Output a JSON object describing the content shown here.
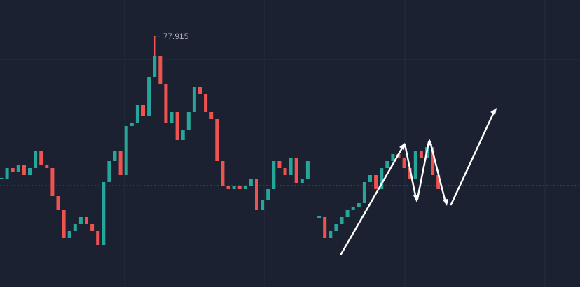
{
  "chart_data": {
    "type": "candlestick",
    "ylim": [
      70.755,
      78.955
    ],
    "close": [
      73.855,
      74.155,
      74.055,
      74.255,
      73.955,
      74.155,
      74.655,
      74.255,
      74.155,
      73.355,
      72.955,
      72.155,
      72.355,
      72.555,
      72.755,
      72.555,
      72.355,
      71.955,
      73.755,
      74.355,
      74.655,
      73.955,
      75.355,
      75.455,
      75.955,
      75.655,
      76.755,
      77.355,
      76.555,
      75.455,
      75.755,
      74.955,
      75.255,
      75.755,
      76.455,
      76.255,
      75.755,
      75.555,
      74.355,
      73.655,
      73.555,
      73.655,
      73.555,
      73.655,
      73.855,
      72.955,
      73.255,
      73.555,
      74.355,
      74.155,
      73.955,
      74.455,
      73.715,
      73.855,
      74.355,
      null,
      72.755,
      72.155,
      72.355,
      72.555,
      72.755,
      72.955,
      73.055,
      73.155,
      73.755,
      73.955,
      73.555,
      74.155,
      74.355,
      74.555,
      74.455,
      74.155,
      73.855,
      74.655,
      74.455,
      74.755,
      73.955,
      73.555
    ],
    "peak": 77.915,
    "price_line": 73.655,
    "up_color": "#26a69a",
    "down_color": "#ef5350"
  }
}
